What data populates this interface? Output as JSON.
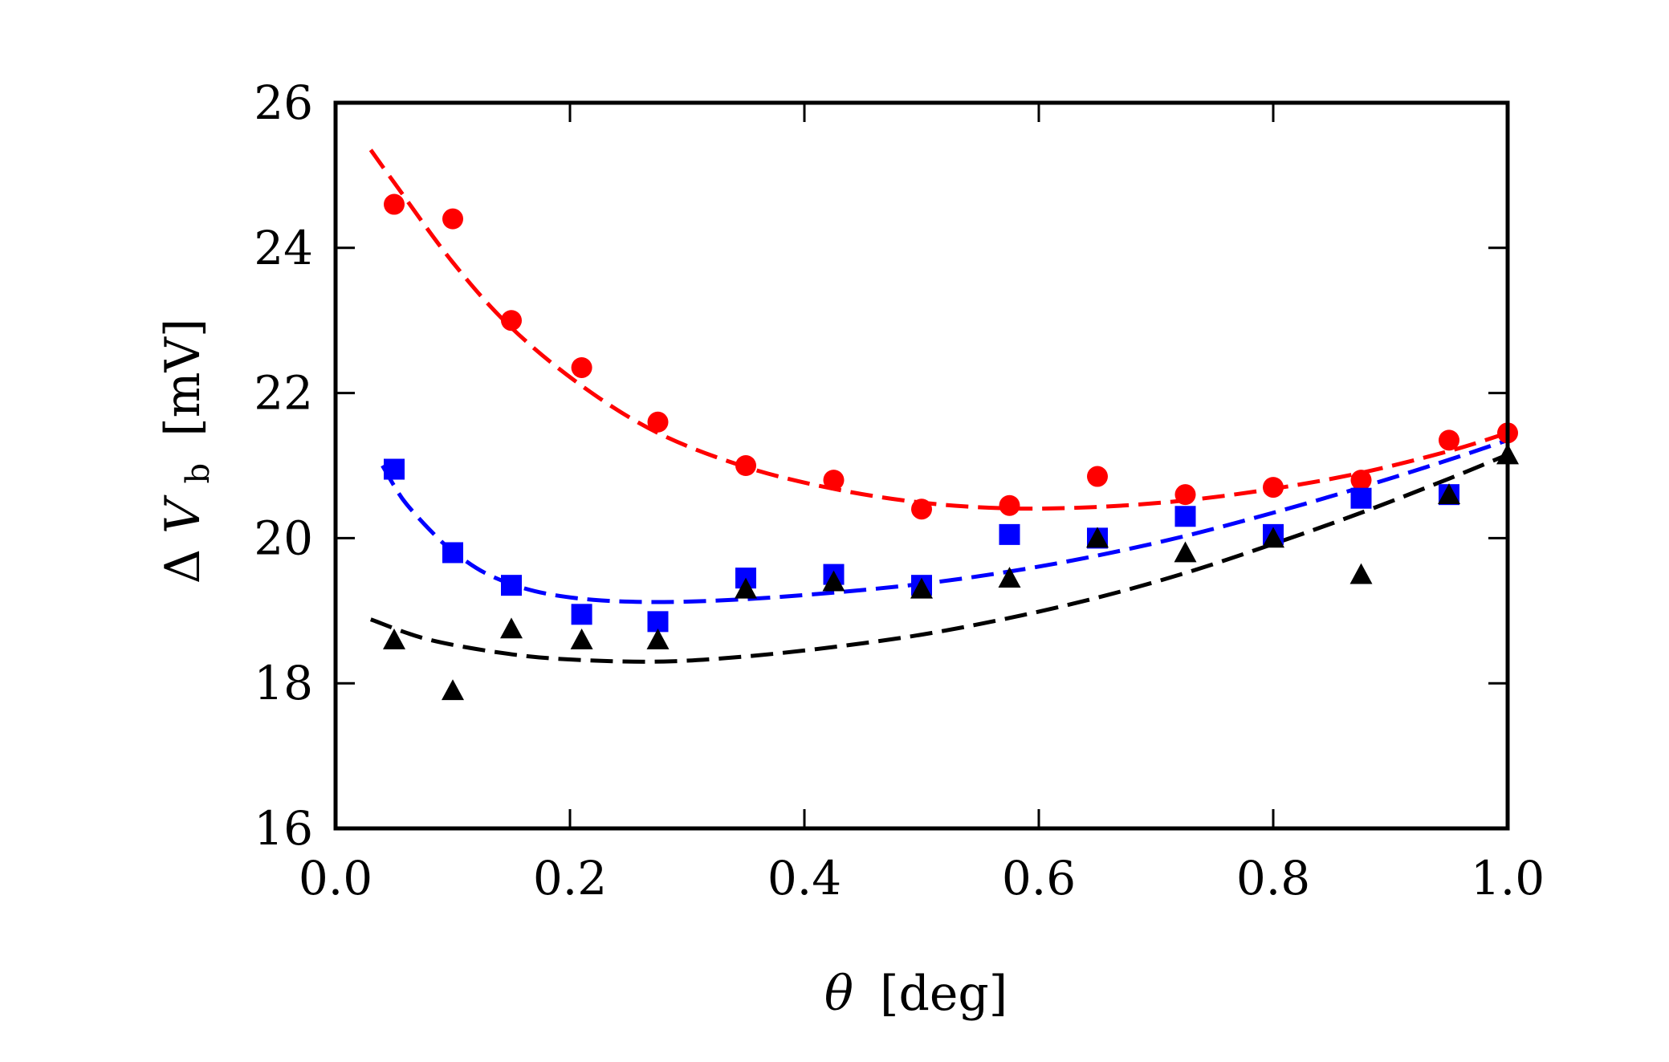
{
  "chart_data": {
    "type": "scatter",
    "title": "",
    "xlabel": {
      "symbol": "θ",
      "unit": "[deg]"
    },
    "ylabel": {
      "delta": "Δ",
      "var": "V",
      "sub": "b",
      "unit": "[mV]"
    },
    "xlim": [
      0.0,
      1.0
    ],
    "ylim": [
      16,
      26
    ],
    "xticks": [
      0.0,
      0.2,
      0.4,
      0.6,
      0.8,
      1.0
    ],
    "xtick_labels": [
      "0.0",
      "0.2",
      "0.4",
      "0.6",
      "0.8",
      "1.0"
    ],
    "yticks": [
      16,
      18,
      20,
      22,
      24,
      26
    ],
    "ytick_labels": [
      "16",
      "18",
      "20",
      "22",
      "24",
      "26"
    ],
    "grid": false,
    "series": [
      {
        "name": "red",
        "color": "#ff0000",
        "marker": "circle",
        "x": [
          0.05,
          0.1,
          0.15,
          0.21,
          0.275,
          0.35,
          0.425,
          0.5,
          0.575,
          0.65,
          0.725,
          0.8,
          0.875,
          0.95,
          1.0
        ],
        "y": [
          24.6,
          24.4,
          23.0,
          22.35,
          21.6,
          21.0,
          20.8,
          20.4,
          20.45,
          20.85,
          20.6,
          20.7,
          20.8,
          21.35,
          21.45
        ],
        "fit_x": [
          0.03,
          0.05,
          0.1,
          0.15,
          0.21,
          0.275,
          0.35,
          0.425,
          0.5,
          0.575,
          0.65,
          0.725,
          0.8,
          0.875,
          0.95,
          1.0
        ],
        "fit_y": [
          25.35,
          24.9,
          23.8,
          22.9,
          22.1,
          21.45,
          20.98,
          20.68,
          20.49,
          20.41,
          20.43,
          20.52,
          20.68,
          20.9,
          21.2,
          21.45
        ]
      },
      {
        "name": "blue",
        "color": "#0000ff",
        "marker": "square",
        "x": [
          0.05,
          0.1,
          0.15,
          0.21,
          0.275,
          0.35,
          0.425,
          0.5,
          0.575,
          0.65,
          0.725,
          0.8,
          0.875,
          0.95
        ],
        "y": [
          20.95,
          19.8,
          19.35,
          18.95,
          18.85,
          19.45,
          19.5,
          19.35,
          20.05,
          20.0,
          20.3,
          20.05,
          20.55,
          20.6
        ],
        "fit_x": [
          0.04,
          0.05,
          0.06,
          0.08,
          0.1,
          0.13,
          0.17,
          0.22,
          0.28,
          0.35,
          0.425,
          0.5,
          0.575,
          0.65,
          0.725,
          0.8,
          0.875,
          0.95,
          1.0
        ],
        "fit_y": [
          21.0,
          20.72,
          20.48,
          20.12,
          19.82,
          19.5,
          19.27,
          19.15,
          19.12,
          19.16,
          19.25,
          19.37,
          19.54,
          19.76,
          20.03,
          20.35,
          20.7,
          21.08,
          21.35
        ]
      },
      {
        "name": "black",
        "color": "#000000",
        "marker": "triangle",
        "x": [
          0.05,
          0.1,
          0.15,
          0.21,
          0.275,
          0.35,
          0.425,
          0.5,
          0.575,
          0.65,
          0.725,
          0.8,
          0.875,
          0.95,
          1.0
        ],
        "y": [
          18.6,
          17.9,
          18.75,
          18.6,
          18.6,
          19.3,
          19.4,
          19.3,
          19.45,
          20.0,
          19.8,
          20.0,
          19.5,
          20.6,
          21.15
        ],
        "fit_x": [
          0.03,
          0.08,
          0.15,
          0.21,
          0.28,
          0.35,
          0.425,
          0.5,
          0.575,
          0.65,
          0.725,
          0.8,
          0.875,
          0.95,
          1.0
        ],
        "fit_y": [
          18.88,
          18.6,
          18.4,
          18.32,
          18.3,
          18.37,
          18.5,
          18.67,
          18.9,
          19.18,
          19.52,
          19.92,
          20.35,
          20.82,
          21.15
        ]
      }
    ]
  }
}
